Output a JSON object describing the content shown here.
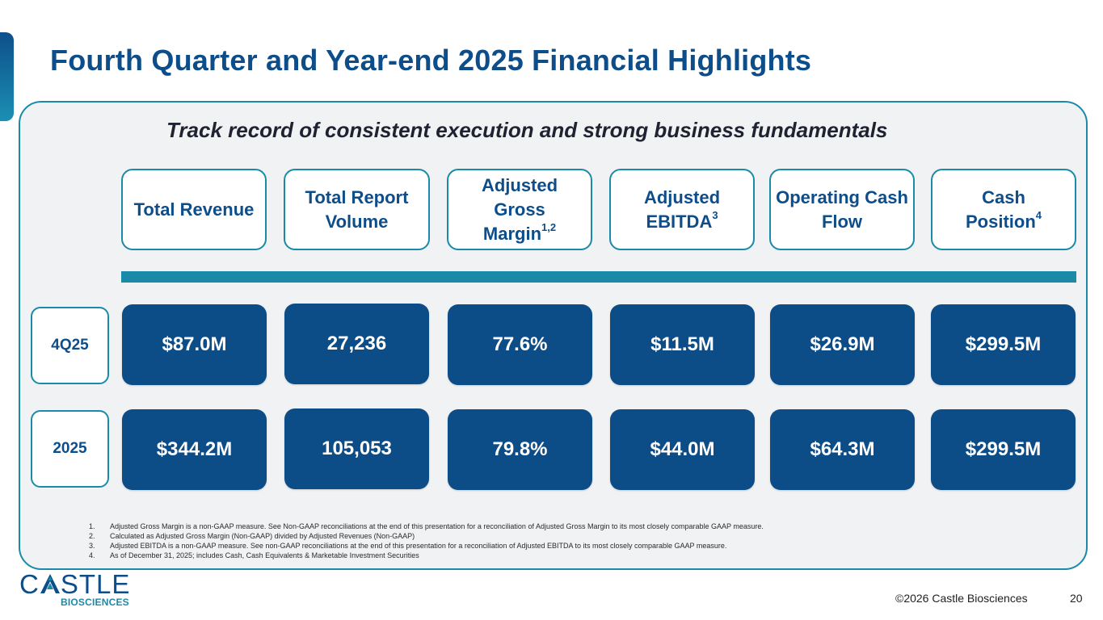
{
  "title": "Fourth Quarter and Year-end 2025 Financial Highlights",
  "subtitle": "Track record of consistent execution and strong business fundamentals",
  "metrics": [
    {
      "label": "Total Revenue",
      "sup": ""
    },
    {
      "label": "Total Report Volume",
      "sup": ""
    },
    {
      "label": "Adjusted Gross Margin",
      "sup": "1,2"
    },
    {
      "label": "Adjusted EBITDA",
      "sup": "3"
    },
    {
      "label": "Operating Cash Flow",
      "sup": ""
    },
    {
      "label": "Cash Position",
      "sup": "4"
    }
  ],
  "rows": [
    {
      "label": "4Q25",
      "values": [
        "$87.0M",
        "27,236",
        "77.6%",
        "$11.5M",
        "$26.9M",
        "$299.5M"
      ]
    },
    {
      "label": "2025",
      "values": [
        "$344.2M",
        "105,053",
        "79.8%",
        "$44.0M",
        "$64.3M",
        "$299.5M"
      ]
    }
  ],
  "footnotes": [
    {
      "num": "1.",
      "text": "Adjusted Gross Margin is a non-GAAP measure. See Non-GAAP reconciliations at the end of this presentation for a reconciliation of Adjusted Gross Margin to its most closely comparable GAAP measure."
    },
    {
      "num": "2.",
      "text": "Calculated as Adjusted Gross Margin (Non-GAAP) divided by Adjusted Revenues (Non-GAAP)"
    },
    {
      "num": "3.",
      "text": "Adjusted EBITDA is a non-GAAP measure. See non-GAAP reconciliations at the end of this presentation for a reconciliation of Adjusted EBITDA to its most closely comparable GAAP measure."
    },
    {
      "num": "4.",
      "text": "As of December 31, 2025; includes Cash, Cash Equivalents & Marketable Investment Securities"
    }
  ],
  "logo": {
    "top_left": "C",
    "top_right": "STLE",
    "bottom": "BIOSCIENCES"
  },
  "footer": {
    "copyright": "©2026 Castle Biosciences",
    "page_number": "20"
  },
  "colors": {
    "brand_blue": "#0d4d8a",
    "teal": "#1b8aa8",
    "panel_bg": "#f1f2f3"
  }
}
